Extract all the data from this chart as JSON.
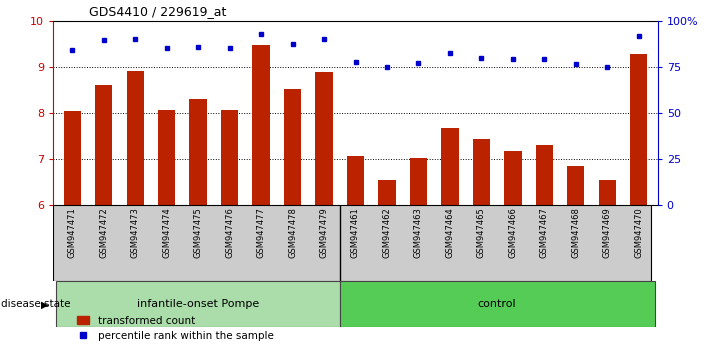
{
  "title": "GDS4410 / 229619_at",
  "samples": [
    "GSM947471",
    "GSM947472",
    "GSM947473",
    "GSM947474",
    "GSM947475",
    "GSM947476",
    "GSM947477",
    "GSM947478",
    "GSM947479",
    "GSM947461",
    "GSM947462",
    "GSM947463",
    "GSM947464",
    "GSM947465",
    "GSM947466",
    "GSM947467",
    "GSM947468",
    "GSM947469",
    "GSM947470"
  ],
  "bar_values": [
    8.05,
    8.62,
    8.92,
    8.08,
    8.32,
    8.08,
    9.48,
    8.52,
    8.9,
    7.08,
    6.55,
    7.02,
    7.68,
    7.45,
    7.18,
    7.32,
    6.85,
    6.55,
    9.28
  ],
  "dot_values": [
    9.38,
    9.6,
    9.62,
    9.42,
    9.44,
    9.42,
    9.72,
    9.5,
    9.62,
    9.12,
    9.0,
    9.1,
    9.3,
    9.2,
    9.18,
    9.18,
    9.08,
    9.0,
    9.68
  ],
  "groups": [
    {
      "label": "infantile-onset Pompe",
      "start": 0,
      "end": 8,
      "color": "#aaddaa"
    },
    {
      "label": "control",
      "start": 9,
      "end": 18,
      "color": "#55cc55"
    }
  ],
  "ylim": [
    6,
    10
  ],
  "yticks": [
    6,
    7,
    8,
    9,
    10
  ],
  "right_ylabels": [
    "0",
    "25",
    "50",
    "75",
    "100%"
  ],
  "bar_color": "#BB2200",
  "dot_color": "#0000CC",
  "bar_bottom": 6,
  "grid_lines": [
    7,
    8,
    9
  ],
  "disease_state_label": "disease state",
  "legend_bar_label": "transformed count",
  "legend_dot_label": "percentile rank within the sample",
  "xtick_bg": "#cccccc"
}
